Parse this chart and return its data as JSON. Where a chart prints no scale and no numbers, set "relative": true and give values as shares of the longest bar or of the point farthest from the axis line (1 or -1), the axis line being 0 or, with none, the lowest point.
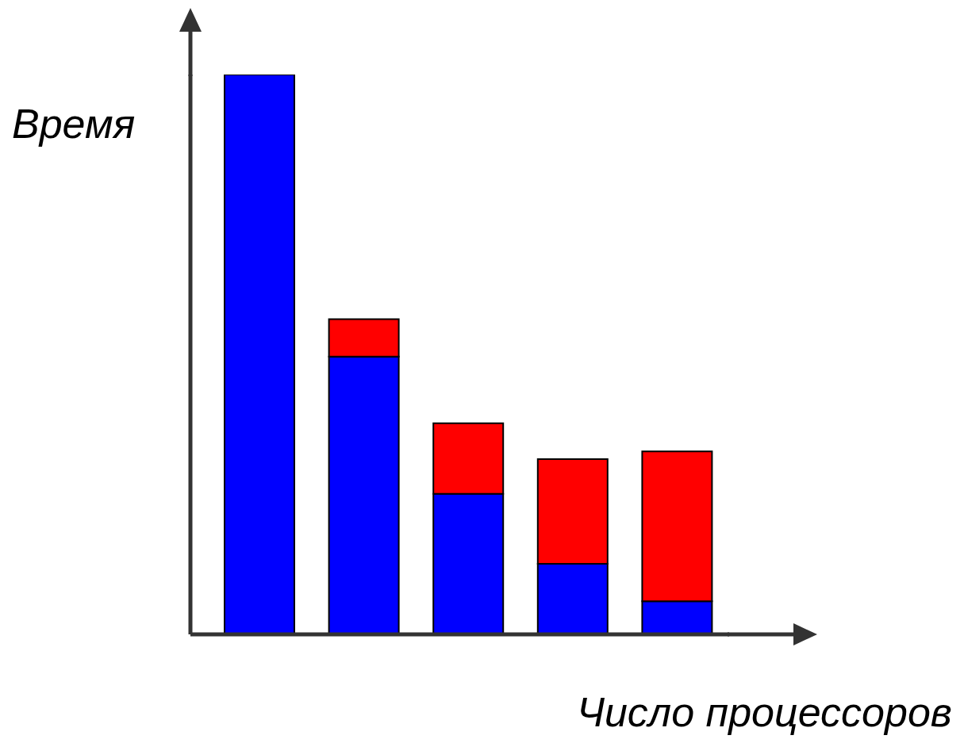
{
  "chart_data": {
    "type": "bar",
    "stacked": true,
    "relative": true,
    "xlabel": "Число процессоров",
    "ylabel": "Время",
    "categories": [
      null,
      null,
      null,
      null,
      null
    ],
    "series": [
      {
        "color": "#0000ff",
        "values": [
          1.0,
          0.496,
          0.251,
          0.126,
          0.059
        ]
      },
      {
        "color": "#ff0000",
        "values": [
          0,
          0.067,
          0.126,
          0.187,
          0.268
        ]
      }
    ]
  }
}
